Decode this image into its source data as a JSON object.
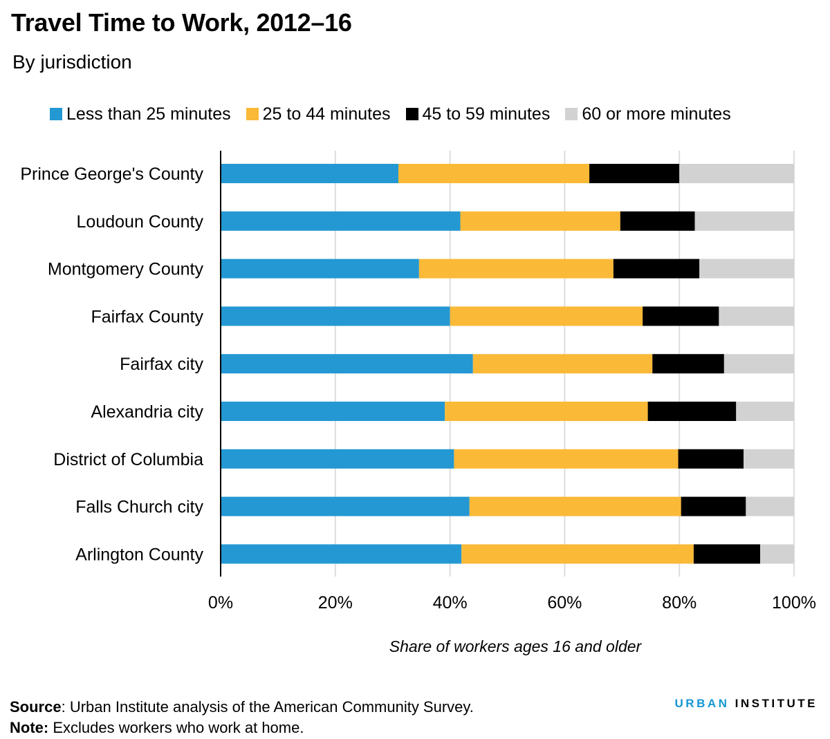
{
  "title": "Travel Time to Work, 2012–16",
  "subtitle": "By jurisdiction",
  "colors": {
    "less_than_25": "#2498D3",
    "m25_to_44": "#FAB937",
    "m45_to_59": "#000000",
    "m60_plus": "#D2D2D2",
    "gridline": "#DDDDDD"
  },
  "chart_data": {
    "type": "bar",
    "orientation": "horizontal",
    "stacked": true,
    "categories": [
      "Prince George's County",
      "Loudoun County",
      "Montgomery County",
      "Fairfax County",
      "Fairfax city",
      "Alexandria city",
      "District of Columbia",
      "Falls Church city",
      "Arlington County"
    ],
    "series": [
      {
        "name": "Less than 25 minutes",
        "color": "#2498D3",
        "values": [
          31.0,
          41.8,
          34.6,
          40.0,
          44.0,
          39.1,
          40.7,
          43.4,
          42.0
        ]
      },
      {
        "name": "25 to 44 minutes",
        "color": "#FAB937",
        "values": [
          33.3,
          27.9,
          33.9,
          33.6,
          31.3,
          35.4,
          39.1,
          36.9,
          40.5
        ]
      },
      {
        "name": "45 to 59 minutes",
        "color": "#000000",
        "values": [
          15.7,
          13.0,
          15.0,
          13.3,
          12.5,
          15.4,
          11.4,
          11.3,
          11.6
        ]
      },
      {
        "name": "60 or more minutes",
        "color": "#D2D2D2",
        "values": [
          20.0,
          17.3,
          16.5,
          13.1,
          12.2,
          10.1,
          8.8,
          8.4,
          5.9
        ]
      }
    ],
    "xlim": [
      0,
      100
    ],
    "x_ticks": [
      "0%",
      "20%",
      "40%",
      "60%",
      "80%",
      "100%"
    ],
    "x_tick_values": [
      0,
      20,
      40,
      60,
      80,
      100
    ],
    "xlabel": "Share of workers ages 16 and older",
    "ylabel": "",
    "grid": true,
    "legend_position": "top"
  },
  "footer": {
    "source_label": "Source",
    "source_text": ": Urban Institute analysis of the American Community Survey.",
    "note_label": "Note:",
    "note_text": " Excludes workers who work at home.",
    "brand_part1": "URBAN",
    "brand_part2": "INSTITUTE"
  }
}
